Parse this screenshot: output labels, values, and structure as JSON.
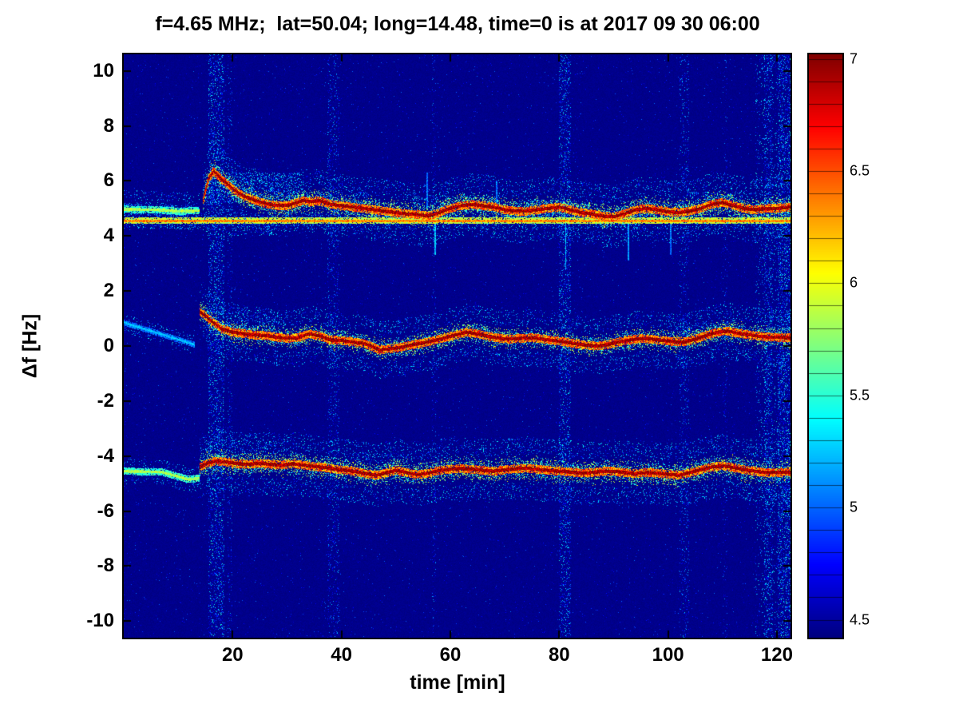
{
  "chart_data": {
    "type": "heatmap",
    "subtype": "doppler-shift-spectrogram",
    "title": "f=4.65 MHz;  lat=50.04; long=14.48, time=0 is at 2017 09 30 06:00",
    "xlabel": "time [min]",
    "ylabel": "Δf [Hz]",
    "xlim": [
      0,
      122.5
    ],
    "ylim": [
      -10.6,
      10.6
    ],
    "xticks": [
      20,
      40,
      60,
      80,
      100,
      120
    ],
    "yticks": [
      -10,
      -8,
      -6,
      -4,
      -2,
      0,
      2,
      4,
      6,
      8,
      10
    ],
    "colorbar": {
      "colormap": "jet",
      "range": [
        4.42,
        7.02
      ],
      "ticks": [
        4.5,
        5,
        5.5,
        6,
        6.5,
        7
      ],
      "division_step": 0.1
    },
    "background_value": 4.45,
    "background_speckle_p": 0.015,
    "seed": 1337,
    "traces": [
      {
        "name": "carrier-line",
        "core": 0.045,
        "fuzz": 0.13,
        "segments": [
          [
            0,
            122.5,
            0.75
          ]
        ],
        "points": [
          [
            0,
            4.55
          ],
          [
            122.5,
            4.55
          ]
        ]
      },
      {
        "name": "upper-early",
        "core": 0.05,
        "fuzz": 0.3,
        "segments": [
          [
            0,
            14,
            0.55
          ]
        ],
        "points": [
          [
            0,
            4.97
          ],
          [
            6,
            4.95
          ],
          [
            10,
            4.9
          ],
          [
            14,
            4.92
          ]
        ]
      },
      {
        "name": "upper-sideband",
        "core": 0.06,
        "fuzz": 0.5,
        "segments": [
          [
            14.5,
            122.5,
            1.0
          ]
        ],
        "points": [
          [
            14.5,
            5.2
          ],
          [
            15.5,
            6.05
          ],
          [
            16.5,
            6.35
          ],
          [
            18,
            6.05
          ],
          [
            19,
            5.9
          ],
          [
            20,
            5.72
          ],
          [
            21,
            5.58
          ],
          [
            22,
            5.45
          ],
          [
            24,
            5.3
          ],
          [
            26,
            5.18
          ],
          [
            28,
            5.1
          ],
          [
            30,
            5.1
          ],
          [
            32,
            5.22
          ],
          [
            33,
            5.3
          ],
          [
            34,
            5.24
          ],
          [
            36,
            5.28
          ],
          [
            38,
            5.15
          ],
          [
            40,
            5.1
          ],
          [
            42,
            5.05
          ],
          [
            44,
            5.0
          ],
          [
            46,
            4.95
          ],
          [
            48,
            4.9
          ],
          [
            50,
            4.85
          ],
          [
            52,
            4.8
          ],
          [
            54,
            4.78
          ],
          [
            56,
            4.72
          ],
          [
            58,
            4.85
          ],
          [
            60,
            5.0
          ],
          [
            62,
            5.1
          ],
          [
            64,
            5.15
          ],
          [
            66,
            5.1
          ],
          [
            68,
            5.05
          ],
          [
            70,
            4.95
          ],
          [
            72,
            4.9
          ],
          [
            74,
            4.9
          ],
          [
            76,
            4.95
          ],
          [
            78,
            5.0
          ],
          [
            80,
            5.05
          ],
          [
            82,
            4.95
          ],
          [
            84,
            4.85
          ],
          [
            86,
            4.8
          ],
          [
            88,
            4.72
          ],
          [
            90,
            4.7
          ],
          [
            92,
            4.8
          ],
          [
            94,
            4.95
          ],
          [
            96,
            5.0
          ],
          [
            98,
            4.95
          ],
          [
            100,
            4.88
          ],
          [
            102,
            4.85
          ],
          [
            104,
            4.9
          ],
          [
            106,
            5.0
          ],
          [
            108,
            5.15
          ],
          [
            110,
            5.22
          ],
          [
            112,
            5.1
          ],
          [
            114,
            5.0
          ],
          [
            116,
            4.95
          ],
          [
            118,
            5.0
          ],
          [
            120,
            5.0
          ],
          [
            122.5,
            5.05
          ]
        ]
      },
      {
        "name": "center-early",
        "core": 0.04,
        "fuzz": 0.15,
        "segments": [
          [
            0,
            13,
            0.32
          ]
        ],
        "points": [
          [
            0,
            0.85
          ],
          [
            13,
            0.05
          ]
        ]
      },
      {
        "name": "center-trace",
        "core": 0.06,
        "fuzz": 0.45,
        "segments": [
          [
            14,
            122.5,
            1.0
          ]
        ],
        "points": [
          [
            14,
            1.25
          ],
          [
            15,
            1.1
          ],
          [
            16,
            0.92
          ],
          [
            17,
            0.78
          ],
          [
            18,
            0.62
          ],
          [
            20,
            0.5
          ],
          [
            22,
            0.45
          ],
          [
            24,
            0.4
          ],
          [
            26,
            0.38
          ],
          [
            28,
            0.32
          ],
          [
            30,
            0.28
          ],
          [
            32,
            0.3
          ],
          [
            34,
            0.44
          ],
          [
            36,
            0.36
          ],
          [
            38,
            0.22
          ],
          [
            40,
            0.2
          ],
          [
            42,
            0.15
          ],
          [
            44,
            0.1
          ],
          [
            46,
            -0.05
          ],
          [
            47,
            -0.15
          ],
          [
            48,
            -0.12
          ],
          [
            50,
            -0.08
          ],
          [
            52,
            0.0
          ],
          [
            54,
            0.08
          ],
          [
            56,
            0.15
          ],
          [
            58,
            0.25
          ],
          [
            60,
            0.35
          ],
          [
            62,
            0.45
          ],
          [
            63,
            0.5
          ],
          [
            65,
            0.44
          ],
          [
            67,
            0.35
          ],
          [
            69,
            0.28
          ],
          [
            71,
            0.25
          ],
          [
            73,
            0.28
          ],
          [
            75,
            0.3
          ],
          [
            77,
            0.25
          ],
          [
            79,
            0.2
          ],
          [
            81,
            0.15
          ],
          [
            83,
            0.08
          ],
          [
            85,
            0.03
          ],
          [
            87,
            0.0
          ],
          [
            89,
            0.05
          ],
          [
            91,
            0.15
          ],
          [
            93,
            0.22
          ],
          [
            95,
            0.27
          ],
          [
            97,
            0.25
          ],
          [
            99,
            0.2
          ],
          [
            101,
            0.16
          ],
          [
            103,
            0.15
          ],
          [
            105,
            0.25
          ],
          [
            107,
            0.38
          ],
          [
            109,
            0.5
          ],
          [
            111,
            0.54
          ],
          [
            113,
            0.46
          ],
          [
            115,
            0.4
          ],
          [
            117,
            0.35
          ],
          [
            119,
            0.32
          ],
          [
            122.5,
            0.3
          ]
        ]
      },
      {
        "name": "lower-early",
        "core": 0.05,
        "fuzz": 0.2,
        "segments": [
          [
            0,
            14,
            0.55
          ]
        ],
        "points": [
          [
            0,
            -4.55
          ],
          [
            7,
            -4.58
          ],
          [
            10,
            -4.75
          ],
          [
            12,
            -4.85
          ],
          [
            14,
            -4.8
          ]
        ]
      },
      {
        "name": "lower-sideband",
        "core": 0.06,
        "fuzz": 0.5,
        "segments": [
          [
            14,
            122.5,
            1.0
          ]
        ],
        "points": [
          [
            14,
            -4.4
          ],
          [
            15.5,
            -4.25
          ],
          [
            17,
            -4.18
          ],
          [
            19,
            -4.22
          ],
          [
            21,
            -4.28
          ],
          [
            23,
            -4.3
          ],
          [
            25,
            -4.26
          ],
          [
            27,
            -4.3
          ],
          [
            29,
            -4.33
          ],
          [
            31,
            -4.28
          ],
          [
            33,
            -4.33
          ],
          [
            35,
            -4.38
          ],
          [
            37,
            -4.42
          ],
          [
            39,
            -4.48
          ],
          [
            41,
            -4.52
          ],
          [
            43,
            -4.58
          ],
          [
            45,
            -4.66
          ],
          [
            46.5,
            -4.7
          ],
          [
            48,
            -4.62
          ],
          [
            50,
            -4.52
          ],
          [
            52,
            -4.6
          ],
          [
            54,
            -4.68
          ],
          [
            56,
            -4.62
          ],
          [
            58,
            -4.52
          ],
          [
            60,
            -4.48
          ],
          [
            62,
            -4.45
          ],
          [
            64,
            -4.48
          ],
          [
            66,
            -4.52
          ],
          [
            68,
            -4.55
          ],
          [
            70,
            -4.5
          ],
          [
            72,
            -4.46
          ],
          [
            74,
            -4.44
          ],
          [
            76,
            -4.48
          ],
          [
            78,
            -4.52
          ],
          [
            80,
            -4.55
          ],
          [
            82,
            -4.58
          ],
          [
            84,
            -4.62
          ],
          [
            86,
            -4.6
          ],
          [
            88,
            -4.55
          ],
          [
            90,
            -4.55
          ],
          [
            92,
            -4.6
          ],
          [
            94,
            -4.64
          ],
          [
            96,
            -4.6
          ],
          [
            98,
            -4.62
          ],
          [
            100,
            -4.66
          ],
          [
            102,
            -4.7
          ],
          [
            104,
            -4.6
          ],
          [
            106,
            -4.5
          ],
          [
            108,
            -4.4
          ],
          [
            110,
            -4.35
          ],
          [
            112,
            -4.42
          ],
          [
            114,
            -4.5
          ],
          [
            116,
            -4.55
          ],
          [
            118,
            -4.6
          ],
          [
            120,
            -4.6
          ],
          [
            122.5,
            -4.58
          ]
        ]
      }
    ],
    "stripes": [
      {
        "x": 17,
        "w": 3.0,
        "strength": 0.9
      },
      {
        "x": 19.5,
        "w": 1.0,
        "strength": 0.4
      },
      {
        "x": 38.5,
        "w": 2.2,
        "strength": 0.5
      },
      {
        "x": 57,
        "w": 0.8,
        "strength": 0.3
      },
      {
        "x": 81,
        "w": 2.2,
        "strength": 0.8
      },
      {
        "x": 103,
        "w": 1.8,
        "strength": 0.5
      },
      {
        "x": 110.5,
        "w": 0.8,
        "strength": 0.25
      },
      {
        "x": 118.5,
        "w": 1.6,
        "strength": 0.7
      },
      {
        "x": 121.3,
        "w": 2.4,
        "strength": 0.9
      }
    ],
    "clouds": [
      {
        "x0": 15,
        "x1": 33,
        "y0": 5.2,
        "y1": 6.3,
        "p": 0.2
      },
      {
        "x0": 15,
        "x1": 28,
        "y0": 4.0,
        "y1": 4.5,
        "p": 0.12
      },
      {
        "x0": 33,
        "x1": 45,
        "y0": 5.1,
        "y1": 5.6,
        "p": 0.12
      },
      {
        "x0": 53,
        "x1": 70,
        "y0": 4.9,
        "y1": 5.5,
        "p": 0.12
      },
      {
        "x0": 74,
        "x1": 86,
        "y0": 4.6,
        "y1": 5.3,
        "p": 0.12
      },
      {
        "x0": 86,
        "x1": 95,
        "y0": 4.3,
        "y1": 4.9,
        "p": 0.1
      },
      {
        "x0": 104,
        "x1": 114,
        "y0": 4.9,
        "y1": 5.6,
        "p": 0.12
      },
      {
        "x0": 15,
        "x1": 30,
        "y0": 0.5,
        "y1": 1.3,
        "p": 0.12
      },
      {
        "x0": 15,
        "x1": 30,
        "y0": -4.0,
        "y1": -3.4,
        "p": 0.08
      },
      {
        "x0": 40,
        "x1": 60,
        "y0": -4.3,
        "y1": -3.9,
        "p": 0.08
      },
      {
        "x0": 100,
        "x1": 112,
        "y0": 0.4,
        "y1": 0.9,
        "p": 0.1
      },
      {
        "x0": 116,
        "x1": 122.5,
        "y0": -10.6,
        "y1": 10.6,
        "p": 0.06
      }
    ],
    "spikes": [
      {
        "x": 57.2,
        "y0": 3.3,
        "y1": 4.55,
        "s": 0.42
      },
      {
        "x": 81.2,
        "y0": 2.8,
        "y1": 4.6,
        "s": 0.4
      },
      {
        "x": 92.7,
        "y0": 3.1,
        "y1": 4.6,
        "s": 0.35
      },
      {
        "x": 100.5,
        "y0": 3.3,
        "y1": 4.6,
        "s": 0.3
      },
      {
        "x": 68.5,
        "y0": 5.2,
        "y1": 6.0,
        "s": 0.3
      },
      {
        "x": 55.8,
        "y0": 5.0,
        "y1": 6.3,
        "s": 0.3
      }
    ]
  }
}
